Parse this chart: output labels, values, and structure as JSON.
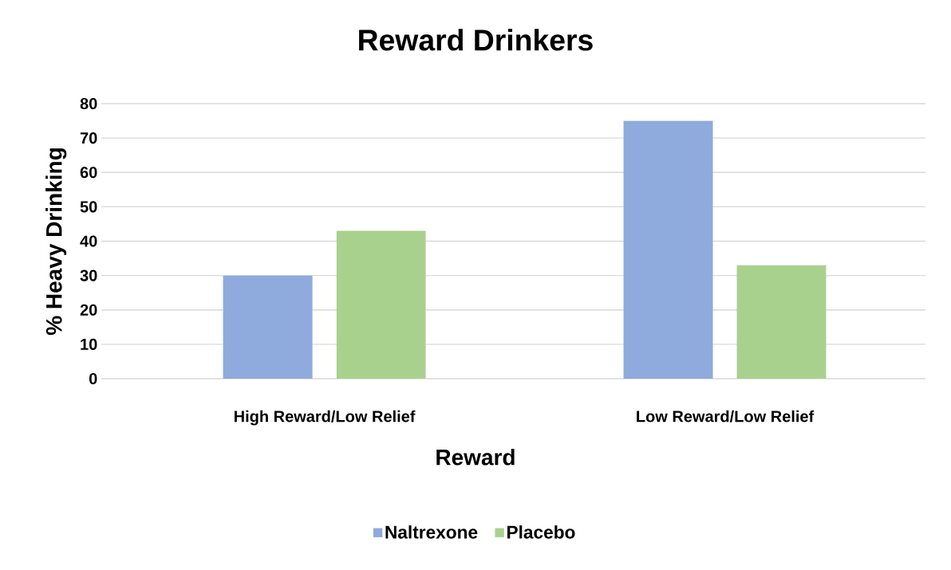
{
  "chart_data": {
    "type": "bar",
    "title": "Reward Drinkers",
    "xlabel": "Reward",
    "ylabel": "% Heavy Drinking",
    "categories": [
      "High Reward/Low Relief",
      "Low Reward/Low Relief"
    ],
    "series": [
      {
        "name": "Naltrexone",
        "color": "#8faadc",
        "values": [
          30,
          75
        ]
      },
      {
        "name": "Placebo",
        "color": "#a9d18e",
        "values": [
          43,
          33
        ]
      }
    ],
    "ylim": [
      0,
      80
    ],
    "yticks": [
      0,
      10,
      20,
      30,
      40,
      50,
      60,
      70,
      80
    ],
    "grid": "y",
    "legend": "bottom"
  }
}
